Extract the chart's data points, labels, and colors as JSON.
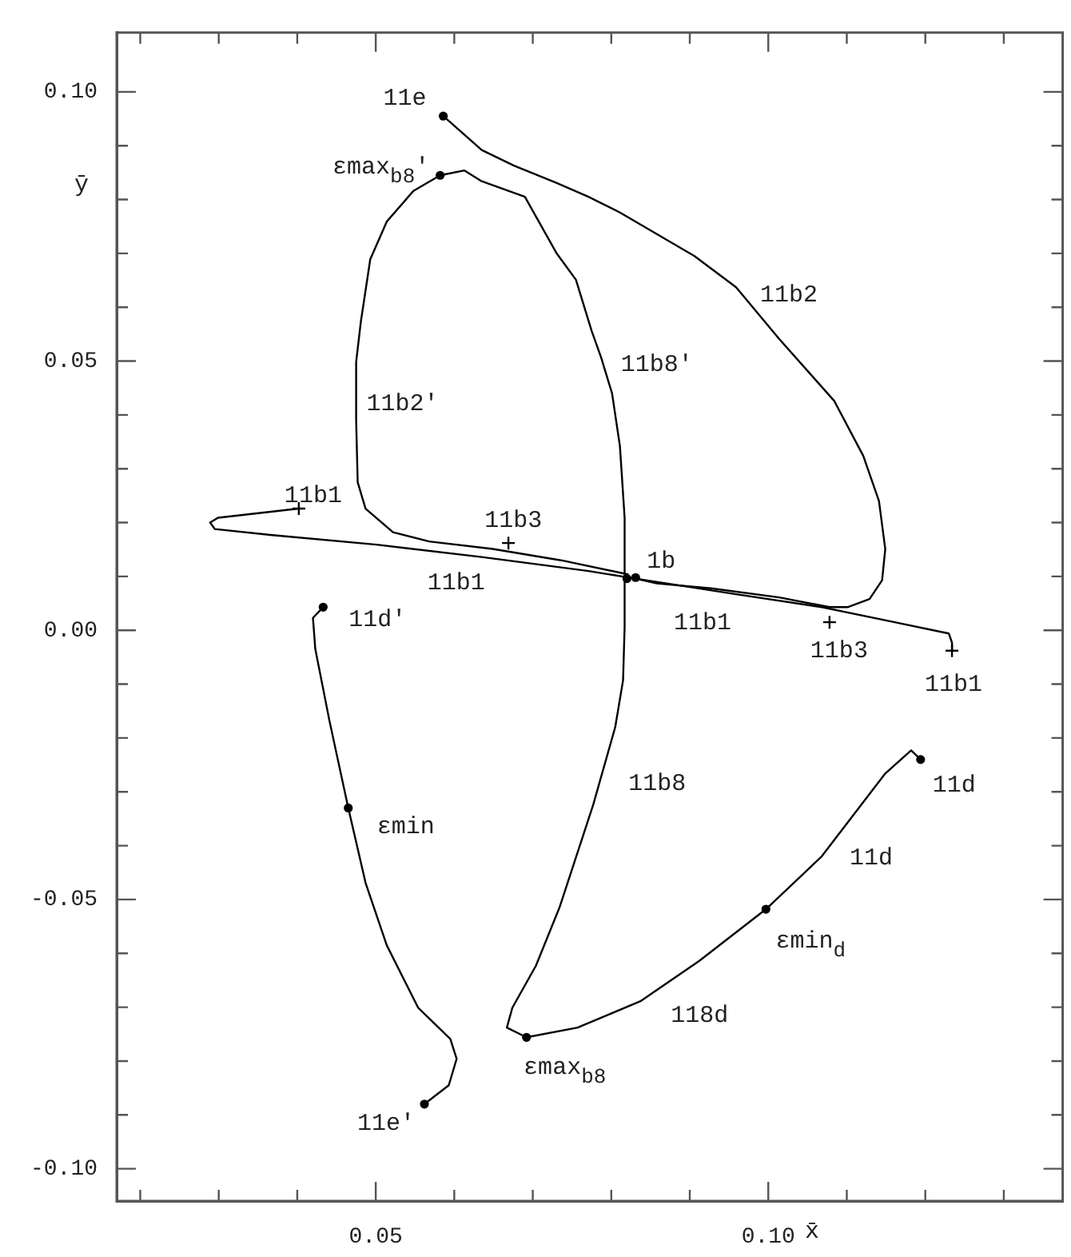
{
  "chart_data": {
    "type": "line",
    "xlabel": "x̄",
    "ylabel": "ȳ",
    "xlim": [
      0.017,
      0.1375
    ],
    "ylim": [
      -0.106,
      0.111
    ],
    "xticks": [
      {
        "value": 0.02,
        "label": null
      },
      {
        "value": 0.03,
        "label": null
      },
      {
        "value": 0.04,
        "label": null
      },
      {
        "value": 0.05,
        "label": "0.05"
      },
      {
        "value": 0.06,
        "label": null
      },
      {
        "value": 0.07,
        "label": null
      },
      {
        "value": 0.08,
        "label": null
      },
      {
        "value": 0.09,
        "label": null
      },
      {
        "value": 0.1,
        "label": "0.10"
      },
      {
        "value": 0.11,
        "label": null
      },
      {
        "value": 0.12,
        "label": null
      },
      {
        "value": 0.13,
        "label": null
      }
    ],
    "yticks": [
      {
        "value": -0.1,
        "label": "-0.10"
      },
      {
        "value": -0.09,
        "label": null
      },
      {
        "value": -0.08,
        "label": null
      },
      {
        "value": -0.07,
        "label": null
      },
      {
        "value": -0.06,
        "label": null
      },
      {
        "value": -0.05,
        "label": "-0.05"
      },
      {
        "value": -0.04,
        "label": null
      },
      {
        "value": -0.03,
        "label": null
      },
      {
        "value": -0.02,
        "label": null
      },
      {
        "value": -0.01,
        "label": null
      },
      {
        "value": 0,
        "label": "0.00"
      },
      {
        "value": 0.01,
        "label": null
      },
      {
        "value": 0.02,
        "label": null
      },
      {
        "value": 0.03,
        "label": null
      },
      {
        "value": 0.04,
        "label": null
      },
      {
        "value": 0.05,
        "label": "0.05"
      },
      {
        "value": 0.06,
        "label": null
      },
      {
        "value": 0.07,
        "label": null
      },
      {
        "value": 0.08,
        "label": null
      },
      {
        "value": 0.09,
        "label": null
      },
      {
        "value": 0.1,
        "label": "0.10"
      }
    ],
    "legend": false,
    "marker": "none",
    "line_style": "solid",
    "series": [
      {
        "color": "#000000",
        "x": [
          0.0586,
          0.0635,
          0.0676,
          0.073,
          0.0771,
          0.0811,
          0.0906,
          0.0959,
          0.1014,
          0.1084,
          0.1121,
          0.1141,
          0.1149,
          0.1145,
          0.1129,
          0.1101,
          0.1078,
          0.1014,
          0.0927,
          0.0858,
          0.0831
        ],
        "values": [
          0.0955,
          0.0892,
          0.0863,
          0.0831,
          0.0805,
          0.0776,
          0.0695,
          0.0637,
          0.0541,
          0.0426,
          0.0324,
          0.024,
          0.0151,
          0.0093,
          0.0058,
          0.0043,
          0.0043,
          0.0061,
          0.0078,
          0.0087,
          0.0096
        ]
      },
      {
        "color": "#000000",
        "x": [
          0.0692,
          0.0667,
          0.0674,
          0.0704,
          0.0734,
          0.0777,
          0.0805,
          0.0815,
          0.0817,
          0.0817,
          0.0817,
          0.0811,
          0.0801,
          0.0787,
          0.0775,
          0.0755,
          0.073,
          0.069,
          0.0635,
          0.0613,
          0.0582,
          0.0548,
          0.0514,
          0.0493,
          0.0481,
          0.0475,
          0.0475,
          0.0477,
          0.0487,
          0.0522,
          0.0568,
          0.0649,
          0.0736,
          0.0821
        ],
        "values": [
          -0.0756,
          -0.0738,
          -0.0701,
          -0.0623,
          -0.0515,
          -0.0324,
          -0.018,
          -0.0093,
          0.0006,
          0.0101,
          0.0209,
          0.0342,
          0.044,
          0.0507,
          0.0556,
          0.0651,
          0.0701,
          0.0805,
          0.0834,
          0.0854,
          0.0845,
          0.0816,
          0.0759,
          0.0689,
          0.0573,
          0.0498,
          0.0391,
          0.0275,
          0.0226,
          0.0182,
          0.0165,
          0.0151,
          0.013,
          0.0104
        ]
      },
      {
        "color": "#000000",
        "x": [
          0.0692,
          0.0757,
          0.0837,
          0.0912,
          0.0997,
          0.1068,
          0.1109,
          0.1149,
          0.1182,
          0.1194
        ],
        "values": [
          -0.0756,
          -0.0738,
          -0.0689,
          -0.0614,
          -0.0518,
          -0.042,
          -0.0342,
          -0.0266,
          -0.0223,
          -0.024
        ]
      },
      {
        "color": "#000000",
        "x": [
          0.0433,
          0.042,
          0.0423,
          0.0441,
          0.0465,
          0.0487,
          0.0514,
          0.0554,
          0.0595,
          0.0603,
          0.0593,
          0.0562
        ],
        "values": [
          0.0043,
          0.0023,
          -0.0035,
          -0.0168,
          -0.033,
          -0.0469,
          -0.0585,
          -0.0701,
          -0.0759,
          -0.0796,
          -0.0845,
          -0.088
        ]
      },
      {
        "color": "#000000",
        "x": [
          0.0402,
          0.0299,
          0.0289,
          0.0295,
          0.0366,
          0.0501,
          0.0635,
          0.0771,
          0.0831,
          0.0959,
          0.1068,
          0.1161,
          0.123,
          0.1234,
          0.1234
        ],
        "values": [
          0.0226,
          0.0209,
          0.02,
          0.0188,
          0.0177,
          0.0159,
          0.0136,
          0.011,
          0.0096,
          0.0067,
          0.0043,
          0.0015,
          -0.0006,
          -0.0023,
          -0.0038
        ]
      },
      {
        "type": "scatter",
        "marker": "circle",
        "color": "#000000",
        "x": [
          0.0586,
          0.0582,
          0.082,
          0.0831,
          0.0433,
          0.0465,
          0.0562,
          0.0692,
          0.0997,
          0.1194
        ],
        "values": [
          0.0955,
          0.0845,
          0.0096,
          0.0098,
          0.0043,
          -0.033,
          -0.088,
          -0.0756,
          -0.0518,
          -0.024
        ]
      },
      {
        "type": "scatter",
        "marker": "cross",
        "color": "#000000",
        "x": [
          0.0402,
          0.0669,
          0.1078,
          0.1234
        ],
        "values": [
          0.0226,
          0.0162,
          0.0015,
          -0.0038
        ]
      }
    ],
    "annotations": [
      {
        "text": "11e",
        "x": 0.0586,
        "y": 0.0955
      },
      {
        "text": "εmax$_{b8}$'",
        "x": 0.0582,
        "y": 0.0845
      },
      {
        "text": "11b2",
        "x": 0.0959,
        "y": 0.0637
      },
      {
        "text": "11b8'",
        "x": 0.0801,
        "y": 0.044
      },
      {
        "text": "11b2'",
        "x": 0.0475,
        "y": 0.0391
      },
      {
        "text": "11b1",
        "x": 0.0402,
        "y": 0.0226
      },
      {
        "text": "11b3",
        "x": 0.0669,
        "y": 0.0162
      },
      {
        "text": "1b",
        "x": 0.0831,
        "y": 0.0098
      },
      {
        "text": "11b1",
        "x": 0.0635,
        "y": 0.0136
      },
      {
        "text": "11b1",
        "x": 0.0959,
        "y": 0.0067
      },
      {
        "text": "11b3",
        "x": 0.1078,
        "y": 0.0015
      },
      {
        "text": "11b1",
        "x": 0.1234,
        "y": -0.0038
      },
      {
        "text": "11d'",
        "x": 0.0433,
        "y": 0.0043
      },
      {
        "text": "εmin",
        "x": 0.0465,
        "y": -0.033
      },
      {
        "text": "11b8",
        "x": 0.0777,
        "y": -0.0324
      },
      {
        "text": "11d",
        "x": 0.1194,
        "y": -0.024
      },
      {
        "text": "11d",
        "x": 0.1068,
        "y": -0.042
      },
      {
        "text": "εmin$_{d}$",
        "x": 0.0997,
        "y": -0.0518
      },
      {
        "text": "118d",
        "x": 0.0837,
        "y": -0.0689
      },
      {
        "text": "εmax$_{b8}$",
        "x": 0.0692,
        "y": -0.0756
      },
      {
        "text": "11e'",
        "x": 0.0562,
        "y": -0.088
      }
    ]
  }
}
